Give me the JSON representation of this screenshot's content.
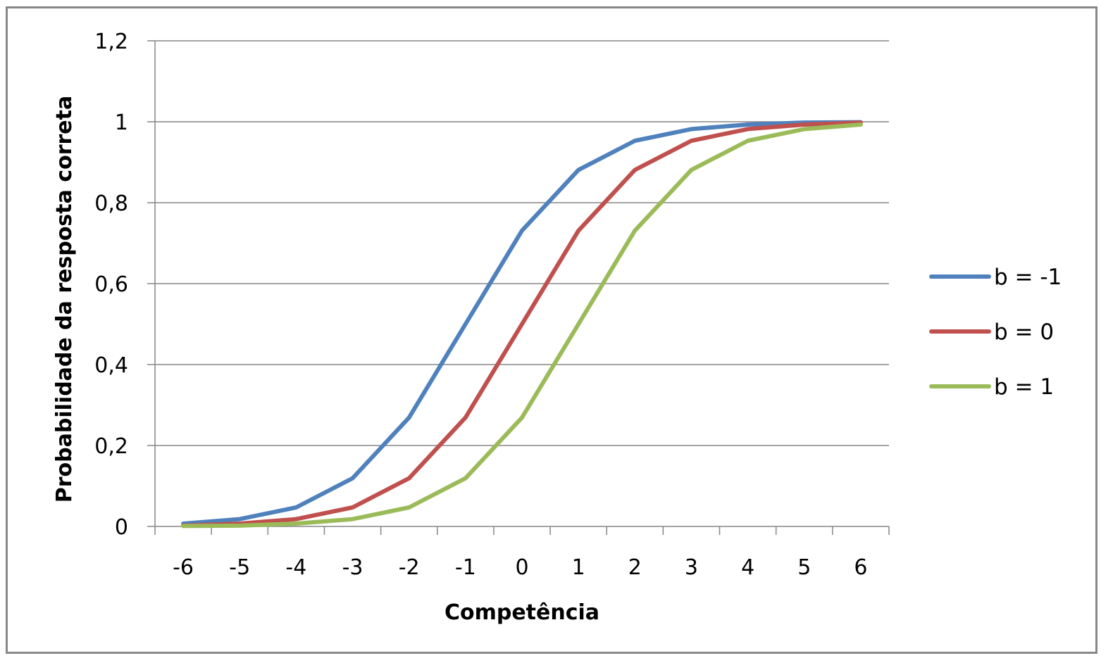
{
  "chart_data": {
    "type": "line",
    "title": "",
    "xlabel": "Competência",
    "ylabel": "Probabilidade da resposta correta",
    "x": [
      -6,
      -5,
      -4,
      -3,
      -2,
      -1,
      0,
      1,
      2,
      3,
      4,
      5,
      6
    ],
    "x_tick_labels": [
      "-6",
      "-5",
      "-4",
      "-3",
      "-2",
      "-1",
      "0",
      "1",
      "2",
      "3",
      "4",
      "5",
      "6"
    ],
    "y_tick_labels": [
      "0",
      "0,2",
      "0,4",
      "0,6",
      "0,8",
      "1",
      "1,2"
    ],
    "y_ticks": [
      0,
      0.2,
      0.4,
      0.6,
      0.8,
      1,
      1.2
    ],
    "ylim": [
      0,
      1.2
    ],
    "grid": "horizontal",
    "legend_position": "right",
    "series": [
      {
        "name": "b = -1",
        "color": "#4F81BD",
        "values": [
          0.007,
          0.018,
          0.047,
          0.119,
          0.269,
          0.5,
          0.731,
          0.881,
          0.953,
          0.982,
          0.993,
          0.998,
          0.999
        ]
      },
      {
        "name": "b = 0",
        "color": "#C0504D",
        "values": [
          0.002,
          0.007,
          0.018,
          0.047,
          0.119,
          0.269,
          0.5,
          0.731,
          0.881,
          0.953,
          0.982,
          0.993,
          0.998
        ]
      },
      {
        "name": "b = 1",
        "color": "#9BBB59",
        "values": [
          0.001,
          0.002,
          0.007,
          0.018,
          0.047,
          0.119,
          0.269,
          0.5,
          0.731,
          0.881,
          0.953,
          0.982,
          0.993
        ]
      }
    ]
  }
}
